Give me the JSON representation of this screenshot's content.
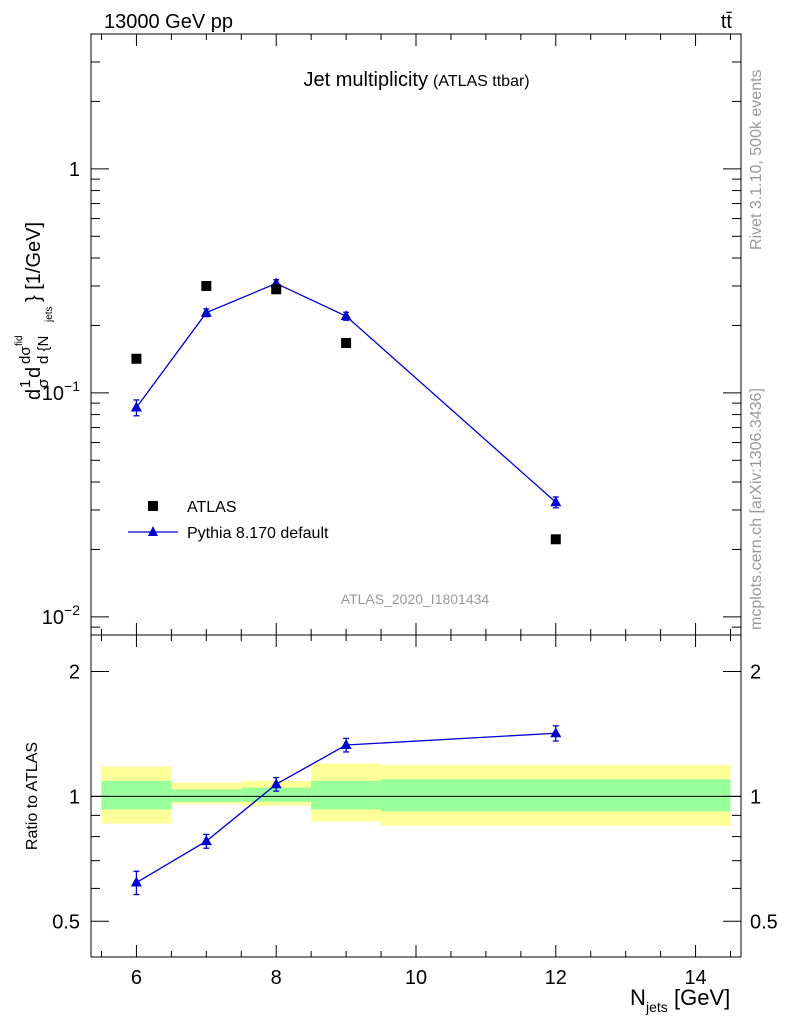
{
  "header": {
    "energy": "13000 GeV pp",
    "process": "tt̄"
  },
  "side_text": {
    "rivet": "Rivet 3.1.10,  500k events",
    "mcplots": "mcplots.cern.ch [arXiv:1306.3436]"
  },
  "colors": {
    "atlas": "#000000",
    "pythia": "#0000cc",
    "band_inner": "#99ff99",
    "band_outer": "#ffff99"
  },
  "chart_data": [
    {
      "type": "scatter",
      "title": "Jet multiplicity",
      "title_note": "(ATLAS ttbar)",
      "analysis_id": "ATLAS_2020_I1801434",
      "ylabel_parts": {
        "prefix": "d",
        "one": "1",
        "sigma": "σ",
        "d2": "d",
        "dsig": "dσ",
        "fid": "fid",
        "dn": "d {N",
        "jets": "jets",
        "close": "} [1/GeV]"
      },
      "y_scale": "log",
      "xlim": [
        5.35,
        14.65
      ],
      "ylim": [
        0.0083,
        4.0
      ],
      "y_ticks": [
        {
          "value": 0.01,
          "mant": "10",
          "exp": "−2"
        },
        {
          "value": 0.1,
          "mant": "10",
          "exp": "−1"
        },
        {
          "value": 1,
          "mant": "1",
          "exp": ""
        }
      ],
      "legend_position": "bottom-left",
      "series": [
        {
          "name": "ATLAS",
          "marker": "square",
          "x": [
            6,
            7,
            8,
            9,
            12
          ],
          "y": [
            0.142,
            0.3,
            0.29,
            0.167,
            0.0222
          ]
        },
        {
          "name": "Pythia 8.170 default",
          "marker": "triangle",
          "x": [
            6,
            7,
            8,
            9,
            12
          ],
          "y": [
            0.086,
            0.228,
            0.308,
            0.22,
            0.0325
          ],
          "err": [
            0.007,
            0.009,
            0.012,
            0.009,
            0.0018
          ]
        }
      ]
    },
    {
      "type": "line",
      "ylabel": "Ratio to ATLAS",
      "xlabel": "N",
      "xlabel_sub": "jets",
      "xlabel_unit": " [GeV]",
      "y_scale": "log",
      "xlim": [
        5.35,
        14.65
      ],
      "ylim": [
        0.41,
        2.45
      ],
      "x_ticks": [
        6,
        8,
        10,
        12,
        14
      ],
      "y_ticks": [
        {
          "value": 0.5,
          "label": "0.5"
        },
        {
          "value": 1,
          "label": "1"
        },
        {
          "value": 2,
          "label": "2"
        }
      ],
      "reference": 1,
      "bands": [
        {
          "x0": 5.5,
          "x1": 6.5,
          "inner": [
            0.93,
            1.09
          ],
          "outer": [
            0.86,
            1.18
          ]
        },
        {
          "x0": 6.5,
          "x1": 7.5,
          "inner": [
            0.97,
            1.04
          ],
          "outer": [
            0.96,
            1.08
          ]
        },
        {
          "x0": 7.5,
          "x1": 8.5,
          "inner": [
            0.97,
            1.05
          ],
          "outer": [
            0.95,
            1.09
          ]
        },
        {
          "x0": 8.5,
          "x1": 9.5,
          "inner": [
            0.93,
            1.09
          ],
          "outer": [
            0.87,
            1.2
          ]
        },
        {
          "x0": 9.5,
          "x1": 14.5,
          "inner": [
            0.92,
            1.1
          ],
          "outer": [
            0.85,
            1.19
          ]
        }
      ],
      "series": [
        {
          "name": "Pythia 8.170 default",
          "x": [
            6,
            7,
            8,
            9,
            12
          ],
          "y": [
            0.62,
            0.78,
            1.07,
            1.33,
            1.42
          ],
          "err": [
            0.04,
            0.03,
            0.04,
            0.05,
            0.06
          ]
        }
      ]
    }
  ]
}
